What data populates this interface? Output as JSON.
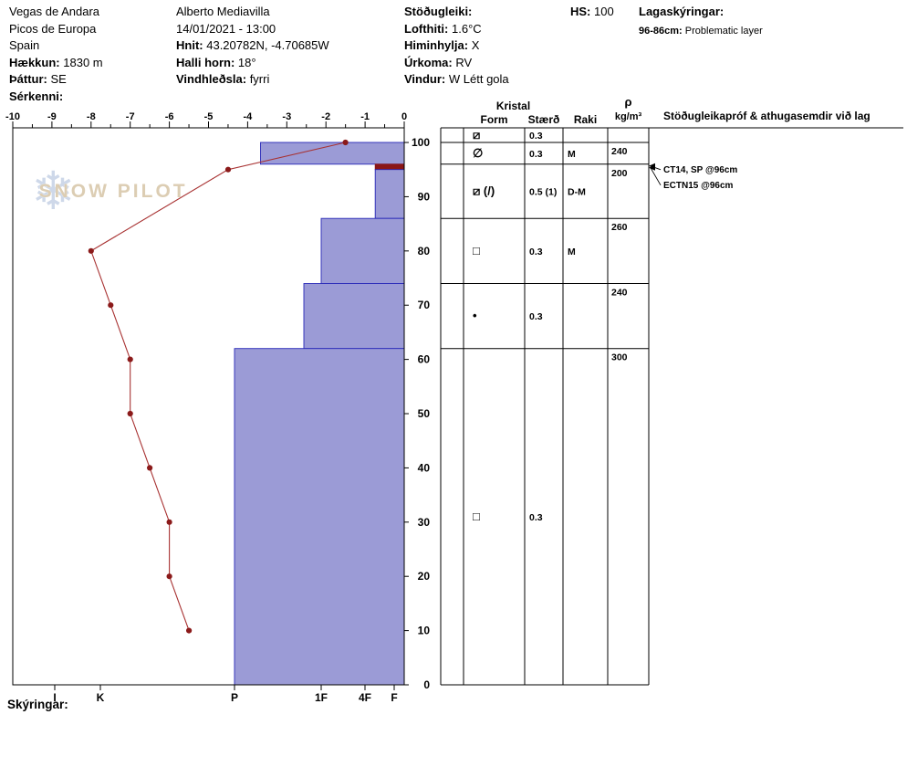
{
  "header": {
    "location": {
      "name": "Vegas de Andara",
      "range": "Picos de Europa",
      "country": "Spain",
      "elevation_label": "Hækkun:",
      "elevation": "1830 m",
      "aspect_label": "Þáttur:",
      "aspect": "SE",
      "features_label": "Sérkenni:",
      "features": ""
    },
    "observer": {
      "name": "Alberto Mediavilla",
      "datetime": "14/01/2021 - 13:00",
      "coords_label": "Hnit:",
      "coords": "43.20782N, -4.70685W",
      "slope_label": "Halli horn:",
      "slope": "18°",
      "windload_label": "Vindhleðsla:",
      "windload": "fyrri"
    },
    "weather": {
      "stability_label": "Stöðugleiki:",
      "stability": "",
      "airtemp_label": "Lofthiti:",
      "airtemp": "1.6°C",
      "sky_label": "Himinhylja:",
      "sky": "X",
      "precip_label": "Úrkoma:",
      "precip": "RV",
      "wind_label": "Vindur:",
      "wind": "W Létt gola"
    },
    "hs_label": "HS:",
    "hs": "100",
    "layer_notes_label": "Lagaskýringar:",
    "layer_note_range": "96-86cm:",
    "layer_note_text": "Problematic layer"
  },
  "watermark": {
    "brand": "SNOW PILOT",
    "snowflake": "❄"
  },
  "footer": {
    "legend_label": "Skýringar:"
  },
  "chart_data": {
    "type": "snow-profile",
    "title": "Snow profile hardness and temperature",
    "temp_axis": {
      "unit": "°C",
      "min": -10,
      "max": 0,
      "major_ticks": [
        -10,
        -9,
        -8,
        -7,
        -6,
        -5,
        -4,
        -3,
        -2,
        -1,
        0
      ]
    },
    "depth_axis": {
      "unit": "cm",
      "min": 0,
      "max": 100,
      "ticks": [
        0,
        10,
        20,
        30,
        40,
        50,
        60,
        70,
        80,
        90,
        100
      ]
    },
    "hardness_axis": {
      "ticks": [
        "I",
        "K",
        "P",
        "1F",
        "4F",
        "F"
      ]
    },
    "hs_cm": 100,
    "temperature_profile": [
      {
        "temp_c": -1.5,
        "height_cm": 100
      },
      {
        "temp_c": -4.5,
        "height_cm": 95
      },
      {
        "temp_c": -8.0,
        "height_cm": 80
      },
      {
        "temp_c": -7.5,
        "height_cm": 70
      },
      {
        "temp_c": -7.0,
        "height_cm": 60
      },
      {
        "temp_c": -7.0,
        "height_cm": 50
      },
      {
        "temp_c": -6.5,
        "height_cm": 40
      },
      {
        "temp_c": -6.0,
        "height_cm": 30
      },
      {
        "temp_c": -6.0,
        "height_cm": 20
      },
      {
        "temp_c": -5.5,
        "height_cm": 10
      }
    ],
    "layers": [
      {
        "top_cm": 100,
        "bottom_cm": 96,
        "hardness": "P-",
        "hardness_index": 3.7,
        "flagged": false
      },
      {
        "top_cm": 96,
        "bottom_cm": 95,
        "hardness": "4F-",
        "hardness_index": 1.65,
        "flagged": true
      },
      {
        "top_cm": 95,
        "bottom_cm": 86,
        "hardness": "4F-",
        "hardness_index": 1.65,
        "flagged": false
      },
      {
        "top_cm": 86,
        "bottom_cm": 74,
        "hardness": "1F",
        "hardness_index": 3.0,
        "flagged": false
      },
      {
        "top_cm": 74,
        "bottom_cm": 62,
        "hardness": "1F+",
        "hardness_index": 3.2,
        "flagged": false
      },
      {
        "top_cm": 62,
        "bottom_cm": 0,
        "hardness": "P",
        "hardness_index": 4.0,
        "flagged": false
      }
    ],
    "colors": {
      "bar_fill": "#9b9bd6",
      "bar_stroke": "#2929b8",
      "flagged_fill": "#8b1616",
      "temp_line": "#a83232",
      "temp_marker": "#8b1a1a"
    },
    "grain_table": {
      "kristal_header": "Kristal",
      "columns": {
        "form": "Form",
        "size": "Stærð",
        "moisture": "Raki",
        "density_symbol": "ρ",
        "density_unit": "kg/m³",
        "comments": "Stöðugleikapróf & athugasemdir við lag"
      },
      "rows": [
        {
          "top_cm": 102.7,
          "bottom_cm": 100,
          "form_glyph": "⧄",
          "size": "0.3",
          "moisture": "",
          "density": ""
        },
        {
          "top_cm": 100,
          "bottom_cm": 96,
          "form_glyph": "∅",
          "size": "0.3",
          "moisture": "M",
          "density": "240"
        },
        {
          "top_cm": 96,
          "bottom_cm": 86,
          "form_glyph": "⧄ (/)",
          "size": "0.5 (1)",
          "moisture": "D-M",
          "density": "200"
        },
        {
          "top_cm": 86,
          "bottom_cm": 74,
          "form_glyph": "□",
          "size": "0.3",
          "moisture": "M",
          "density": "260"
        },
        {
          "top_cm": 74,
          "bottom_cm": 62,
          "form_glyph": "•",
          "size": "0.3",
          "moisture": "",
          "density": "240"
        },
        {
          "top_cm": 62,
          "bottom_cm": 0,
          "form_glyph": "□",
          "size": "0.3",
          "moisture": "",
          "density": "300"
        }
      ],
      "stability_tests": [
        "CT14, SP @96cm",
        "ECTN15 @96cm"
      ],
      "tests_at_height_cm": 96
    }
  }
}
